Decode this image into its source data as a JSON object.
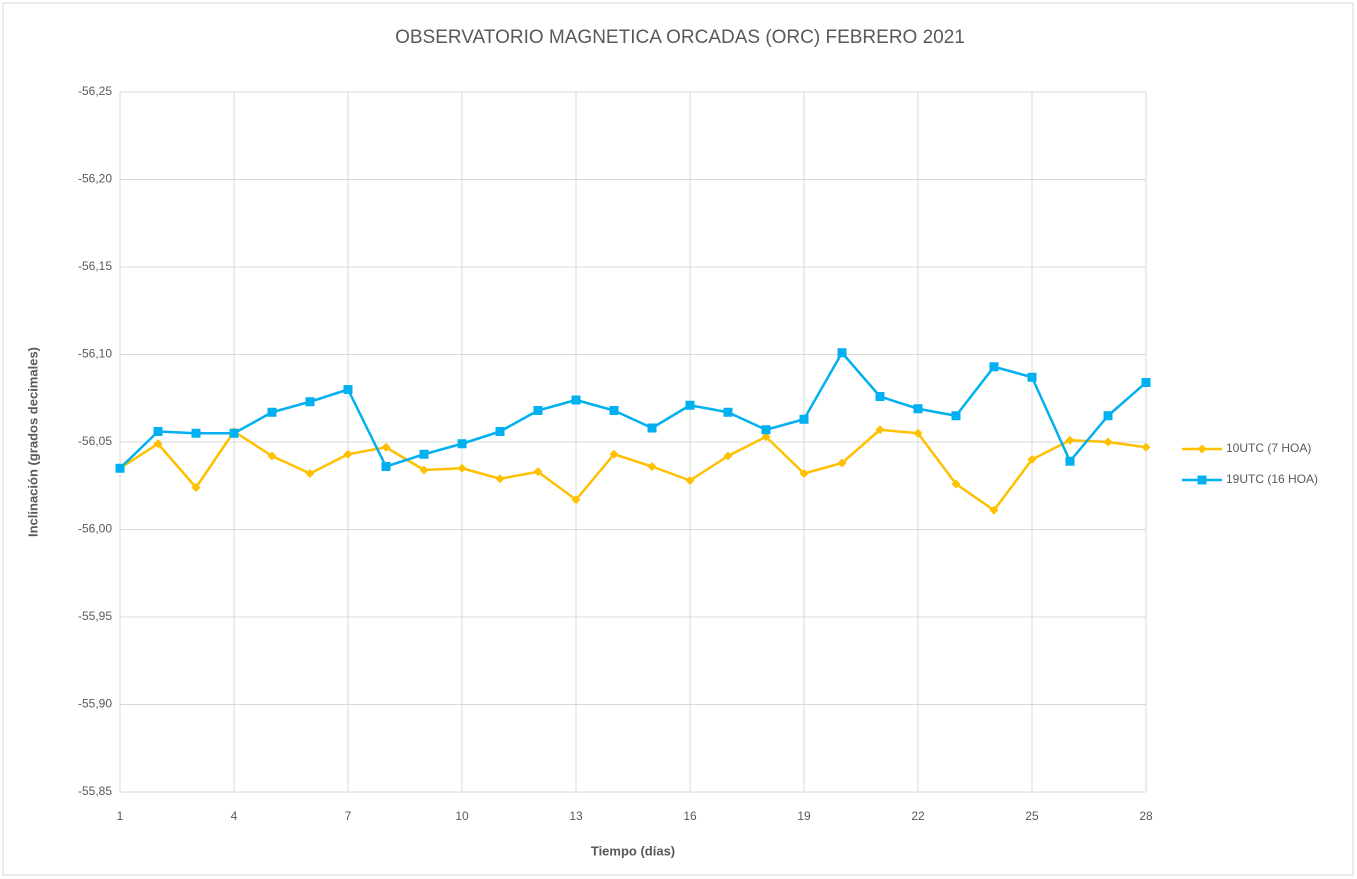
{
  "chart_data": {
    "type": "line",
    "title": "OBSERVATORIO MAGNETICA ORCADAS (ORC) FEBRERO 2021",
    "x_label": "Tiempo (días)",
    "y_label": "Inclinación  (grados decimales)",
    "x": [
      1,
      2,
      3,
      4,
      5,
      6,
      7,
      8,
      9,
      10,
      11,
      12,
      13,
      14,
      15,
      16,
      17,
      18,
      19,
      20,
      21,
      22,
      23,
      24,
      25,
      26,
      27,
      28
    ],
    "series": [
      {
        "name": "10UTC (7 HOA)",
        "color": "#ffc000",
        "marker": "diamond",
        "values": [
          -56.035,
          -56.049,
          -56.024,
          -56.056,
          -56.042,
          -56.032,
          -56.043,
          -56.047,
          -56.034,
          -56.035,
          -56.029,
          -56.033,
          -56.017,
          -56.043,
          -56.036,
          -56.028,
          -56.042,
          -56.053,
          -56.032,
          -56.038,
          -56.057,
          -56.055,
          -56.026,
          -56.011,
          -56.04,
          -56.051,
          -56.05,
          -56.047
        ]
      },
      {
        "name": "19UTC (16 HOA)",
        "color": "#00b0f0",
        "marker": "square",
        "values": [
          -56.035,
          -56.056,
          -56.055,
          -56.055,
          -56.067,
          -56.073,
          -56.08,
          -56.036,
          -56.043,
          -56.049,
          -56.056,
          -56.068,
          -56.074,
          -56.068,
          -56.058,
          -56.071,
          -56.067,
          -56.057,
          -56.063,
          -56.101,
          -56.076,
          -56.069,
          -56.065,
          -56.093,
          -56.087,
          -56.039,
          -56.065,
          -56.084
        ]
      }
    ],
    "xlim": [
      1,
      28
    ],
    "xticks": [
      1,
      4,
      7,
      10,
      13,
      16,
      19,
      22,
      25,
      28
    ],
    "ylim": [
      -56.25,
      -55.85
    ],
    "y_inverted": true,
    "yticks": [
      {
        "value": -56.25,
        "label": "-56,25"
      },
      {
        "value": -56.2,
        "label": "-56,20"
      },
      {
        "value": -56.15,
        "label": "-56,15"
      },
      {
        "value": -56.1,
        "label": "-56,10"
      },
      {
        "value": -56.05,
        "label": "-56,05"
      },
      {
        "value": -56.0,
        "label": "-56,00"
      },
      {
        "value": -55.95,
        "label": "-55,95"
      },
      {
        "value": -55.9,
        "label": "-55,90"
      },
      {
        "value": -55.85,
        "label": "-55,85"
      }
    ],
    "grid": true,
    "legend": "right"
  }
}
